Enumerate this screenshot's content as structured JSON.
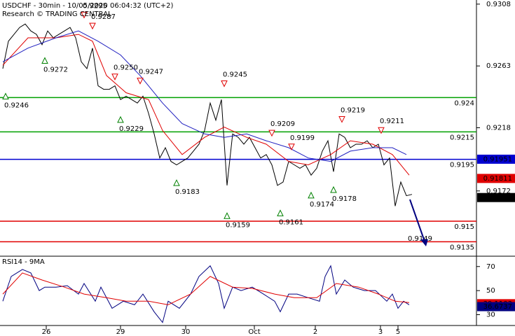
{
  "chart_data": [
    {
      "type": "line",
      "title": "USDCHF - 30min - 10/05/2020 06:04:32 (UTC+2)",
      "subtitle": "Research © TRADING CENTRAL",
      "xlim": [
        -1,
        169
      ],
      "ylim": [
        0.9125,
        0.9311
      ],
      "yticks": [
        0.9308,
        0.9263,
        0.9218,
        0.9172
      ],
      "xticks": [
        {
          "value": 15.5,
          "label": "26"
        },
        {
          "value": 42,
          "label": "29"
        },
        {
          "value": 65.25,
          "label": "30"
        },
        {
          "value": 89.75,
          "label": "Oct"
        },
        {
          "value": 111.5,
          "label": "2"
        },
        {
          "value": 134.75,
          "label": "3"
        },
        {
          "value": 141,
          "label": "5"
        }
      ],
      "series": [
        {
          "color": "#000000",
          "width": 1,
          "x": [
            0,
            2,
            4,
            6,
            8,
            10,
            12,
            14,
            16,
            18,
            20,
            22,
            24,
            26,
            28,
            30,
            32,
            34,
            36,
            38,
            40,
            42,
            44,
            46,
            48,
            50,
            52,
            54,
            56,
            58,
            60,
            62,
            64,
            66,
            68,
            70,
            72,
            74,
            76,
            78,
            80,
            82,
            84,
            86,
            88,
            90,
            92,
            94,
            96,
            98,
            100,
            102,
            104,
            106,
            108,
            110,
            112,
            114,
            116,
            118,
            120,
            122,
            124,
            126,
            128,
            130,
            132,
            134,
            136,
            138,
            140,
            142,
            144,
            146
          ],
          "values": [
            0.9261,
            0.9281,
            0.9286,
            0.9291,
            0.92935,
            0.92885,
            0.9286,
            0.92785,
            0.92885,
            0.92835,
            0.9286,
            0.92885,
            0.9291,
            0.92835,
            0.9266,
            0.9261,
            0.9276,
            0.92485,
            0.9246,
            0.9246,
            0.92485,
            0.92385,
            0.9241,
            0.92385,
            0.9236,
            0.9241,
            0.92285,
            0.92135,
            0.9196,
            0.92035,
            0.91935,
            0.9191,
            0.91935,
            0.9196,
            0.9201,
            0.9206,
            0.9216,
            0.9236,
            0.92235,
            0.92385,
            0.9176,
            0.92135,
            0.9211,
            0.9206,
            0.9211,
            0.92035,
            0.9196,
            0.91985,
            0.9191,
            0.9176,
            0.91785,
            0.91935,
            0.9191,
            0.91885,
            0.9191,
            0.91835,
            0.91885,
            0.9201,
            0.92085,
            0.9186,
            0.92135,
            0.9211,
            0.92035,
            0.9206,
            0.9206,
            0.92085,
            0.92035,
            0.9206,
            0.9191,
            0.9196,
            0.9161,
            0.91785,
            0.91685,
            0.91695
          ]
        },
        {
          "color": "#e00000",
          "width": 1,
          "x": [
            0,
            9,
            19,
            27,
            32,
            37,
            44,
            52,
            57,
            64,
            72,
            79,
            87,
            94,
            102,
            109,
            117,
            124,
            132,
            139,
            145
          ],
          "values": [
            0.92635,
            0.92835,
            0.92835,
            0.9286,
            0.9281,
            0.9256,
            0.92435,
            0.92385,
            0.9216,
            0.91985,
            0.9211,
            0.92185,
            0.9211,
            0.9206,
            0.91935,
            0.9191,
            0.91985,
            0.92085,
            0.9206,
            0.91985,
            0.91835
          ]
        },
        {
          "color": "#2020c0",
          "width": 1,
          "x": [
            0,
            9,
            19,
            27,
            34,
            42,
            49,
            57,
            64,
            72,
            79,
            87,
            94,
            102,
            109,
            117,
            124,
            132,
            139,
            144
          ],
          "values": [
            0.9266,
            0.9276,
            0.92835,
            0.92885,
            0.9281,
            0.9271,
            0.9256,
            0.9236,
            0.9221,
            0.92135,
            0.9211,
            0.92135,
            0.92085,
            0.92035,
            0.9196,
            0.91935,
            0.9201,
            0.92035,
            0.92035,
            0.91985
          ]
        }
      ],
      "levels": [
        {
          "value": 0.924,
          "color": "#00a000"
        },
        {
          "value": 0.9215,
          "color": "#00a000"
        },
        {
          "value": 0.9195,
          "color": "#0000d0"
        },
        {
          "value": 0.915,
          "color": "#e00000"
        },
        {
          "value": 0.9135,
          "color": "#e00000"
        }
      ],
      "markers": [
        {
          "value": 0.91951,
          "color": "#0000d0"
        },
        {
          "value": 0.91811,
          "color": "#e00000"
        },
        {
          "value": 0.91672,
          "color": "#000000"
        }
      ],
      "pivots": [
        {
          "x": 1,
          "value": 0.9246,
          "label": "0.9246",
          "dir": "up"
        },
        {
          "x": 15,
          "value": 0.9272,
          "label": "0.9272",
          "dir": "up"
        },
        {
          "x": 29,
          "value": 0.9295,
          "label": "0.9295",
          "dir": "down"
        },
        {
          "x": 32,
          "value": 0.9287,
          "label": "0.9287",
          "dir": "down"
        },
        {
          "x": 40,
          "value": 0.925,
          "label": "0.9250",
          "dir": "down"
        },
        {
          "x": 49,
          "value": 0.9247,
          "label": "0.9247",
          "dir": "down"
        },
        {
          "x": 42,
          "value": 0.9229,
          "label": "0.9229",
          "dir": "up"
        },
        {
          "x": 79,
          "value": 0.9245,
          "label": "0.9245",
          "dir": "down"
        },
        {
          "x": 62,
          "value": 0.9183,
          "label": "0.9183",
          "dir": "up"
        },
        {
          "x": 80,
          "value": 0.9159,
          "label": "0.9159",
          "dir": "up"
        },
        {
          "x": 96,
          "value": 0.9209,
          "label": "0.9209",
          "dir": "down"
        },
        {
          "x": 103,
          "value": 0.9199,
          "label": "0.9199",
          "dir": "down"
        },
        {
          "x": 99,
          "value": 0.9161,
          "label": "0.9161",
          "dir": "up"
        },
        {
          "x": 110,
          "value": 0.9174,
          "label": "0.9174",
          "dir": "up"
        },
        {
          "x": 118,
          "value": 0.9178,
          "label": "0.9178",
          "dir": "up"
        },
        {
          "x": 121,
          "value": 0.9219,
          "label": "0.9219",
          "dir": "down"
        },
        {
          "x": 135,
          "value": 0.9211,
          "label": "0.9211",
          "dir": "down"
        },
        {
          "x": 145,
          "value": 0.9149,
          "label": "0.9149",
          "dir": "none"
        }
      ]
    },
    {
      "type": "line",
      "title": "RSI14 - 9MA",
      "xlim": [
        -1,
        169
      ],
      "ylim": [
        21,
        78
      ],
      "yticks": [
        70,
        50,
        30
      ],
      "series": [
        {
          "color": "#000080",
          "width": 1,
          "x": [
            0,
            3,
            7,
            10,
            13,
            15,
            19,
            23,
            27,
            29,
            33,
            35,
            39,
            43,
            47,
            50,
            54,
            57,
            59,
            63,
            67,
            70,
            74,
            77,
            79,
            82,
            85,
            89,
            93,
            97,
            99,
            102,
            105,
            109,
            113,
            115,
            117,
            119,
            122,
            125,
            129,
            133,
            137,
            139,
            141,
            143,
            145
          ],
          "values": [
            41.2,
            61.8,
            67.6,
            64.7,
            50,
            52.9,
            52.9,
            54.1,
            47.1,
            55.9,
            41.2,
            52.9,
            35.3,
            41.2,
            38.2,
            47.1,
            32.4,
            23.5,
            41.2,
            35.3,
            47.1,
            61.8,
            70.6,
            55.9,
            35.3,
            52.9,
            50,
            52.9,
            47.1,
            41.2,
            32.4,
            47.1,
            47.1,
            44.1,
            41.2,
            61.8,
            70.6,
            47.1,
            58.8,
            52.9,
            50,
            50,
            41.2,
            47.1,
            35.3,
            41.2,
            38.2
          ]
        },
        {
          "color": "#e00000",
          "width": 1,
          "x": [
            0,
            7,
            14,
            22,
            29,
            37,
            44,
            52,
            59,
            67,
            74,
            82,
            89,
            97,
            104,
            112,
            119,
            127,
            134,
            140,
            145
          ],
          "values": [
            47.1,
            64.7,
            58.8,
            52.9,
            47.1,
            44.1,
            41.2,
            41.2,
            38.2,
            47.1,
            61.8,
            52.9,
            51.8,
            47.1,
            44.1,
            44.1,
            55.9,
            52.9,
            47.1,
            41.2,
            40.0
          ]
        }
      ],
      "markers": [
        {
          "value": 39.1103,
          "color": "#e00000"
        },
        {
          "value": 36.6737,
          "color": "#000080"
        }
      ]
    }
  ]
}
